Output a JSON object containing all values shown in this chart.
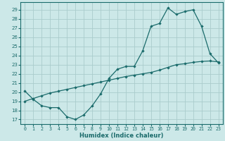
{
  "xlabel": "Humidex (Indice chaleur)",
  "bg_color": "#cce8e8",
  "grid_color": "#aacccc",
  "line_color": "#1a6b6b",
  "xlim": [
    -0.5,
    23.5
  ],
  "ylim": [
    16.5,
    29.8
  ],
  "yticks": [
    17,
    18,
    19,
    20,
    21,
    22,
    23,
    24,
    25,
    26,
    27,
    28,
    29
  ],
  "xticks": [
    0,
    1,
    2,
    3,
    4,
    5,
    6,
    7,
    8,
    9,
    10,
    11,
    12,
    13,
    14,
    15,
    16,
    17,
    18,
    19,
    20,
    21,
    22,
    23
  ],
  "line1_x": [
    0,
    1,
    2,
    3,
    4,
    5,
    6,
    7,
    8,
    9,
    10,
    11,
    12,
    13,
    14,
    15,
    16,
    17,
    18,
    19,
    20,
    21,
    22,
    23
  ],
  "line1_y": [
    20.1,
    19.2,
    18.5,
    18.3,
    18.3,
    17.3,
    17.0,
    17.5,
    18.5,
    19.8,
    21.5,
    22.5,
    22.8,
    22.8,
    24.5,
    27.2,
    27.5,
    29.2,
    28.5,
    28.8,
    29.0,
    27.2,
    24.2,
    23.2
  ],
  "line2_x": [
    0,
    1,
    2,
    3,
    4,
    5,
    6,
    7,
    8,
    9,
    10,
    11,
    12,
    13,
    14,
    15,
    16,
    17,
    18,
    19,
    20,
    21,
    22,
    23
  ],
  "line2_y": [
    19.0,
    19.3,
    19.6,
    19.9,
    20.1,
    20.3,
    20.5,
    20.7,
    20.9,
    21.1,
    21.3,
    21.5,
    21.7,
    21.85,
    22.0,
    22.15,
    22.4,
    22.7,
    23.0,
    23.1,
    23.25,
    23.35,
    23.4,
    23.3
  ]
}
